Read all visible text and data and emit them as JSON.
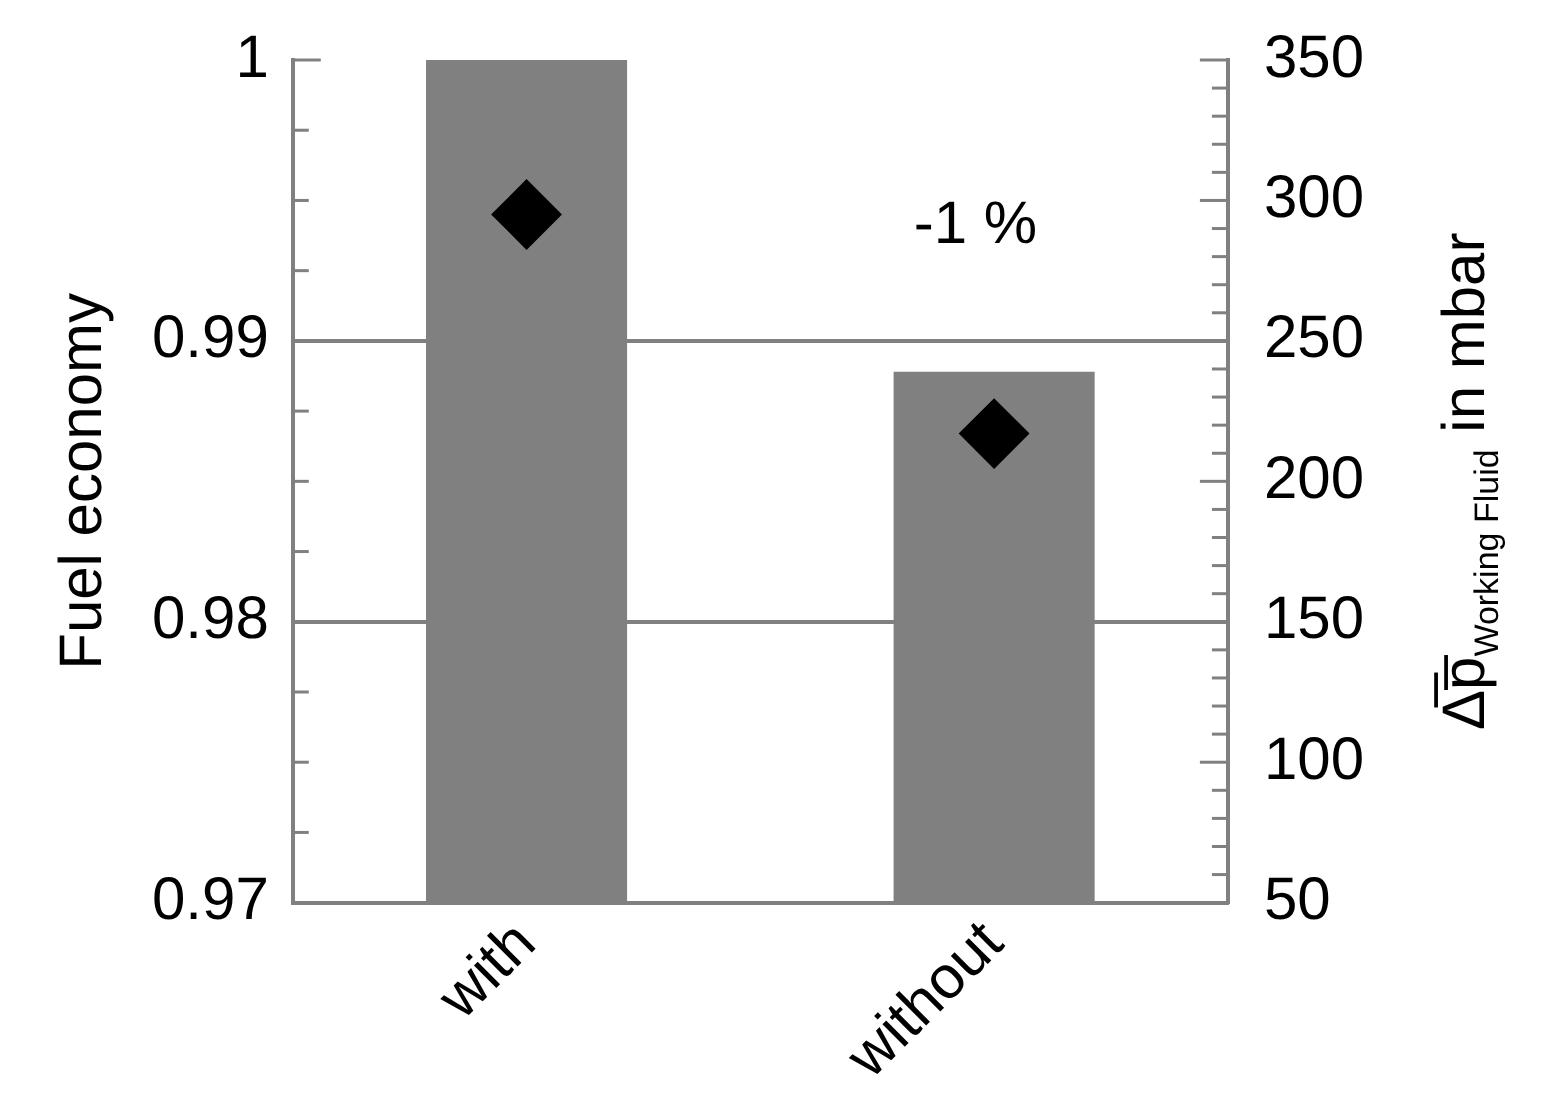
{
  "chart_data": {
    "type": "bar",
    "categories": [
      "with",
      "without"
    ],
    "values": [
      1,
      0.9889
    ],
    "color": "#808080",
    "series": [
      {
        "type": "scatter",
        "x": [
          "with",
          "without"
        ],
        "values": [
          295,
          217
        ],
        "color": "#000000",
        "axis": "y2",
        "marker": "diamond"
      }
    ],
    "ylabel": "Fuel economy",
    "y2label": "Δ̅p̅$_{Working Fluid}$ in mbar",
    "annotations": [
      "-1 %"
    ],
    "ylim": [
      0.97,
      1
    ],
    "yticks": [
      0.97,
      {
        "value": 0.9725,
        "label": null
      },
      {
        "value": 0.975,
        "label": null
      },
      {
        "value": 0.9775,
        "label": null
      },
      0.98,
      {
        "value": 0.9825,
        "label": null
      },
      {
        "value": 0.985,
        "label": null
      },
      {
        "value": 0.9875,
        "label": null
      },
      0.99,
      {
        "value": 0.9925,
        "label": null
      },
      {
        "value": 0.995,
        "label": null
      },
      {
        "value": 0.9975,
        "label": null
      },
      1
    ],
    "y2lim": [
      50,
      350
    ],
    "y2ticks": [
      50,
      {
        "value": 60,
        "label": null
      },
      {
        "value": 70,
        "label": null
      },
      {
        "value": 80,
        "label": null
      },
      {
        "value": 90,
        "label": null
      },
      100,
      {
        "value": 110,
        "label": null
      },
      {
        "value": 120,
        "label": null
      },
      {
        "value": 130,
        "label": null
      },
      {
        "value": 140,
        "label": null
      },
      150,
      {
        "value": 160,
        "label": null
      },
      {
        "value": 170,
        "label": null
      },
      {
        "value": 180,
        "label": null
      },
      {
        "value": 190,
        "label": null
      },
      200,
      {
        "value": 210,
        "label": null
      },
      {
        "value": 220,
        "label": null
      },
      {
        "value": 230,
        "label": null
      },
      {
        "value": 240,
        "label": null
      },
      250,
      {
        "value": 260,
        "label": null
      },
      {
        "value": 270,
        "label": null
      },
      {
        "value": 280,
        "label": null
      },
      {
        "value": 290,
        "label": null
      },
      300,
      {
        "value": 310,
        "label": null
      },
      {
        "value": 320,
        "label": null
      },
      {
        "value": 330,
        "label": null
      },
      {
        "value": 340,
        "label": null
      },
      350
    ],
    "grid": "y",
    "legend": false
  }
}
